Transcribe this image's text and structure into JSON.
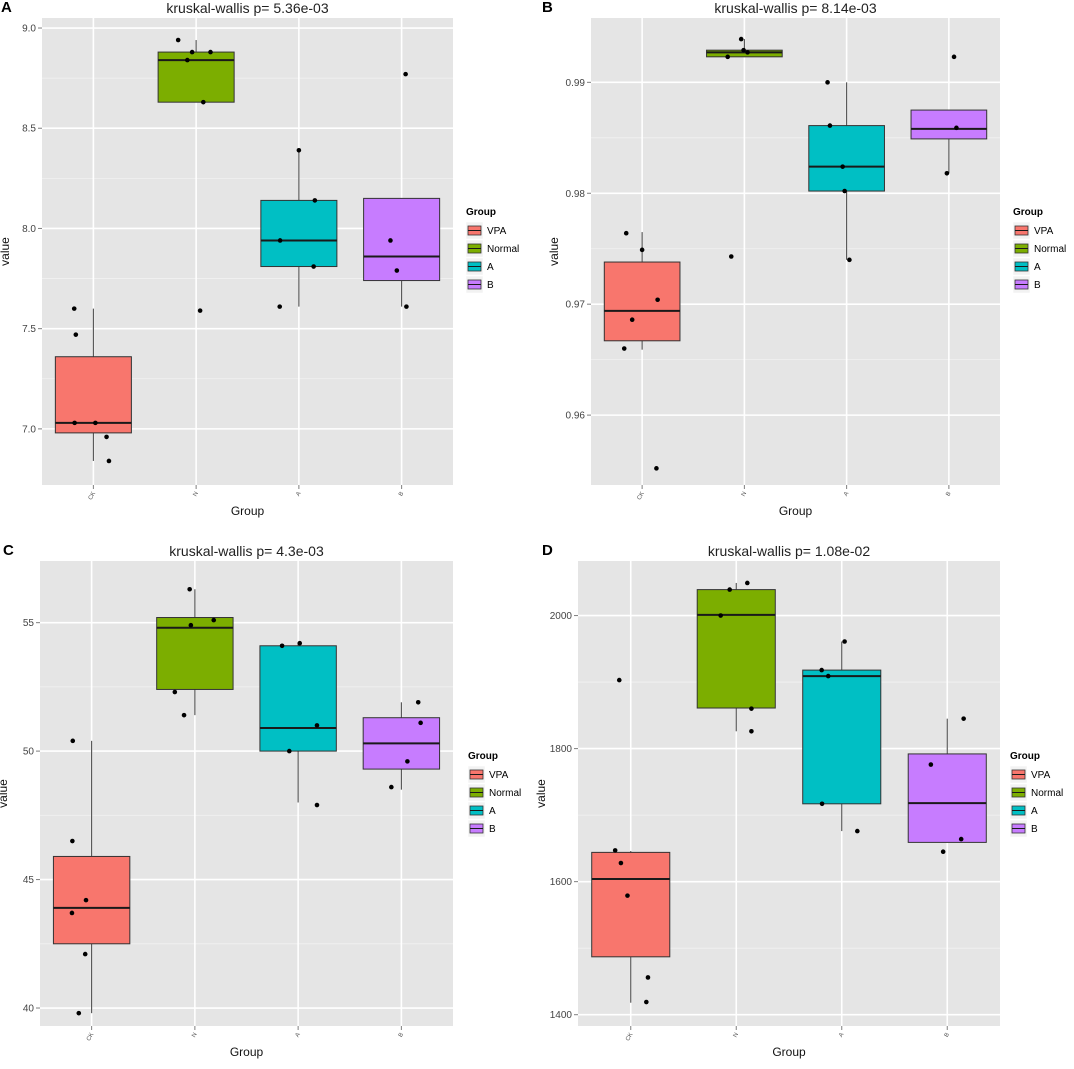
{
  "chart_data": [
    {
      "type": "boxplot",
      "panel_label": "A",
      "title": "kruskal-wallis  p= 5.36e-03",
      "xlabel": "Group",
      "ylabel": "value",
      "ylim": [
        6.72,
        9.05
      ],
      "yticks": [
        7.0,
        7.5,
        8.0,
        8.5,
        9.0
      ],
      "ytick_labels": [
        "7.0",
        "7.5",
        "8.0",
        "8.5",
        "9.0"
      ],
      "categories": [
        "CK",
        "N",
        "A",
        "B"
      ],
      "groups": [
        {
          "name": "VPA",
          "color": "#F8766D",
          "q1": 6.98,
          "median": 7.03,
          "q3": 7.36,
          "whisker_low": 6.84,
          "whisker_high": 7.6,
          "points": [
            [
              -0.48,
              7.6
            ],
            [
              -0.44,
              7.47
            ],
            [
              -0.47,
              7.03
            ],
            [
              0.05,
              7.03
            ],
            [
              0.33,
              6.96
            ],
            [
              0.39,
              6.84
            ]
          ]
        },
        {
          "name": "Normal",
          "color": "#7CAE00",
          "q1": 8.63,
          "median": 8.84,
          "q3": 8.88,
          "whisker_low": 8.63,
          "whisker_high": 8.94,
          "points": [
            [
              -0.45,
              8.94
            ],
            [
              -0.22,
              8.84
            ],
            [
              -0.1,
              8.88
            ],
            [
              0.36,
              8.88
            ],
            [
              0.18,
              8.63
            ],
            [
              0.1,
              7.59
            ]
          ]
        },
        {
          "name": "A",
          "color": "#00BFC4",
          "q1": 7.81,
          "median": 7.94,
          "q3": 8.14,
          "whisker_low": 7.61,
          "whisker_high": 8.39,
          "points": [
            [
              -0.47,
              7.94
            ],
            [
              -0.48,
              7.61
            ],
            [
              0.0,
              8.39
            ],
            [
              0.4,
              8.14
            ],
            [
              0.37,
              7.81
            ]
          ]
        },
        {
          "name": "B",
          "color": "#C77CFF",
          "q1": 7.74,
          "median": 7.86,
          "q3": 8.15,
          "whisker_low": 7.61,
          "whisker_high": 8.15,
          "points": [
            [
              -0.28,
              7.94
            ],
            [
              -0.12,
              7.79
            ],
            [
              0.1,
              8.77
            ],
            [
              0.12,
              7.61
            ]
          ]
        }
      ],
      "legend": {
        "title": "Group",
        "entries": [
          "VPA",
          "Normal",
          "A",
          "B"
        ]
      }
    },
    {
      "type": "boxplot",
      "panel_label": "B",
      "title": "kruskal-wallis  p= 8.14e-03",
      "xlabel": "Group",
      "ylabel": "value",
      "ylim": [
        0.9537,
        0.9958
      ],
      "yticks": [
        0.96,
        0.97,
        0.98,
        0.99
      ],
      "ytick_labels": [
        "0.96",
        "0.97",
        "0.98",
        "0.99"
      ],
      "categories": [
        "CK",
        "N",
        "A",
        "B"
      ],
      "groups": [
        {
          "name": "VPA",
          "color": "#F8766D",
          "q1": 0.9667,
          "median": 0.9694,
          "q3": 0.9738,
          "whisker_low": 0.9659,
          "whisker_high": 0.9765,
          "points": [
            [
              -0.4,
              0.9764
            ],
            [
              -0.45,
              0.966
            ],
            [
              -0.25,
              0.9686
            ],
            [
              0.0,
              0.9749
            ],
            [
              0.39,
              0.9704
            ],
            [
              0.36,
              0.9552
            ]
          ]
        },
        {
          "name": "Normal",
          "color": "#7CAE00",
          "q1": 0.9923,
          "median": 0.9927,
          "q3": 0.9929,
          "whisker_low": 0.9923,
          "whisker_high": 0.9939,
          "points": [
            [
              -0.42,
              0.9923
            ],
            [
              -0.33,
              0.9743
            ],
            [
              -0.08,
              0.9939
            ],
            [
              -0.02,
              0.9929
            ],
            [
              0.08,
              0.9927
            ]
          ]
        },
        {
          "name": "A",
          "color": "#00BFC4",
          "q1": 0.9802,
          "median": 0.9824,
          "q3": 0.9861,
          "whisker_low": 0.974,
          "whisker_high": 0.99,
          "points": [
            [
              -0.48,
              0.99
            ],
            [
              -0.42,
              0.9861
            ],
            [
              -0.1,
              0.9824
            ],
            [
              -0.05,
              0.9802
            ],
            [
              0.07,
              0.974
            ]
          ]
        },
        {
          "name": "B",
          "color": "#C77CFF",
          "q1": 0.9849,
          "median": 0.9858,
          "q3": 0.9875,
          "whisker_low": 0.9818,
          "whisker_high": 0.9875,
          "points": [
            [
              0.13,
              0.9923
            ],
            [
              -0.05,
              0.9818
            ],
            [
              0.19,
              0.9859
            ]
          ]
        }
      ],
      "legend": {
        "title": "Group",
        "entries": [
          "VPA",
          "Normal",
          "A",
          "B"
        ]
      }
    },
    {
      "type": "boxplot",
      "panel_label": "C",
      "title": "kruskal-wallis  p= 4.3e-03",
      "xlabel": "Group",
      "ylabel": "value",
      "ylim": [
        39.3,
        57.4
      ],
      "yticks": [
        40,
        45,
        50,
        55
      ],
      "ytick_labels": [
        "40",
        "45",
        "50",
        "55"
      ],
      "categories": [
        "CK",
        "N",
        "A",
        "B"
      ],
      "groups": [
        {
          "name": "VPA",
          "color": "#F8766D",
          "q1": 42.5,
          "median": 43.9,
          "q3": 45.9,
          "whisker_low": 39.8,
          "whisker_high": 50.4,
          "points": [
            [
              -0.47,
              50.4
            ],
            [
              -0.48,
              46.5
            ],
            [
              -0.49,
              43.7
            ],
            [
              -0.14,
              44.2
            ],
            [
              -0.16,
              42.1
            ],
            [
              -0.32,
              39.8
            ]
          ]
        },
        {
          "name": "Normal",
          "color": "#7CAE00",
          "q1": 52.4,
          "median": 54.8,
          "q3": 55.2,
          "whisker_low": 51.4,
          "whisker_high": 56.3,
          "points": [
            [
              -0.13,
              56.3
            ],
            [
              -0.1,
              54.9
            ],
            [
              0.47,
              55.1
            ],
            [
              -0.5,
              52.3
            ],
            [
              -0.27,
              51.4
            ]
          ]
        },
        {
          "name": "A",
          "color": "#00BFC4",
          "q1": 50.0,
          "median": 50.9,
          "q3": 54.1,
          "whisker_low": 48.0,
          "whisker_high": 54.2,
          "points": [
            [
              -0.4,
              54.1
            ],
            [
              0.04,
              54.2
            ],
            [
              -0.22,
              50.0
            ],
            [
              0.47,
              51.0
            ],
            [
              0.47,
              47.9
            ]
          ]
        },
        {
          "name": "B",
          "color": "#C77CFF",
          "q1": 49.3,
          "median": 50.3,
          "q3": 51.3,
          "whisker_low": 48.5,
          "whisker_high": 51.9,
          "points": [
            [
              0.42,
              51.9
            ],
            [
              0.48,
              51.1
            ],
            [
              0.15,
              49.6
            ],
            [
              -0.25,
              48.6
            ]
          ]
        }
      ],
      "legend": {
        "title": "Group",
        "entries": [
          "VPA",
          "Normal",
          "A",
          "B"
        ]
      }
    },
    {
      "type": "boxplot",
      "panel_label": "D",
      "title": "kruskal-wallis  p= 1.08e-02",
      "xlabel": "Group",
      "ylabel": "value",
      "ylim": [
        1383,
        2082
      ],
      "yticks": [
        1400,
        1600,
        1800,
        2000
      ],
      "ytick_labels": [
        "1400",
        "1600",
        "1800",
        "2000"
      ],
      "categories": [
        "CK",
        "N",
        "A",
        "B"
      ],
      "groups": [
        {
          "name": "VPA",
          "color": "#F8766D",
          "q1": 1487,
          "median": 1604,
          "q3": 1644,
          "whisker_low": 1418,
          "whisker_high": 1646,
          "points": [
            [
              -0.38,
              1647
            ],
            [
              -0.24,
              1628
            ],
            [
              -0.08,
              1579
            ],
            [
              -0.28,
              1903
            ],
            [
              0.42,
              1456
            ],
            [
              0.38,
              1419
            ]
          ]
        },
        {
          "name": "Normal",
          "color": "#7CAE00",
          "q1": 1861,
          "median": 2001,
          "q3": 2039,
          "whisker_low": 1826,
          "whisker_high": 2049,
          "points": [
            [
              -0.38,
              2000
            ],
            [
              -0.16,
              2039
            ],
            [
              0.27,
              2049
            ],
            [
              0.37,
              1860
            ],
            [
              0.37,
              1826
            ]
          ]
        },
        {
          "name": "A",
          "color": "#00BFC4",
          "q1": 1717,
          "median": 1909,
          "q3": 1918,
          "whisker_low": 1676,
          "whisker_high": 1961,
          "points": [
            [
              -0.49,
              1918
            ],
            [
              -0.33,
              1909
            ],
            [
              0.07,
              1961
            ],
            [
              -0.48,
              1717
            ],
            [
              0.38,
              1676
            ]
          ]
        },
        {
          "name": "B",
          "color": "#C77CFF",
          "q1": 1659,
          "median": 1718,
          "q3": 1792,
          "whisker_low": 1659,
          "whisker_high": 1845,
          "points": [
            [
              -0.4,
              1776
            ],
            [
              0.4,
              1845
            ],
            [
              0.34,
              1664
            ],
            [
              -0.1,
              1645
            ]
          ]
        }
      ],
      "legend": {
        "title": "Group",
        "entries": [
          "VPA",
          "Normal",
          "A",
          "B"
        ]
      }
    }
  ]
}
